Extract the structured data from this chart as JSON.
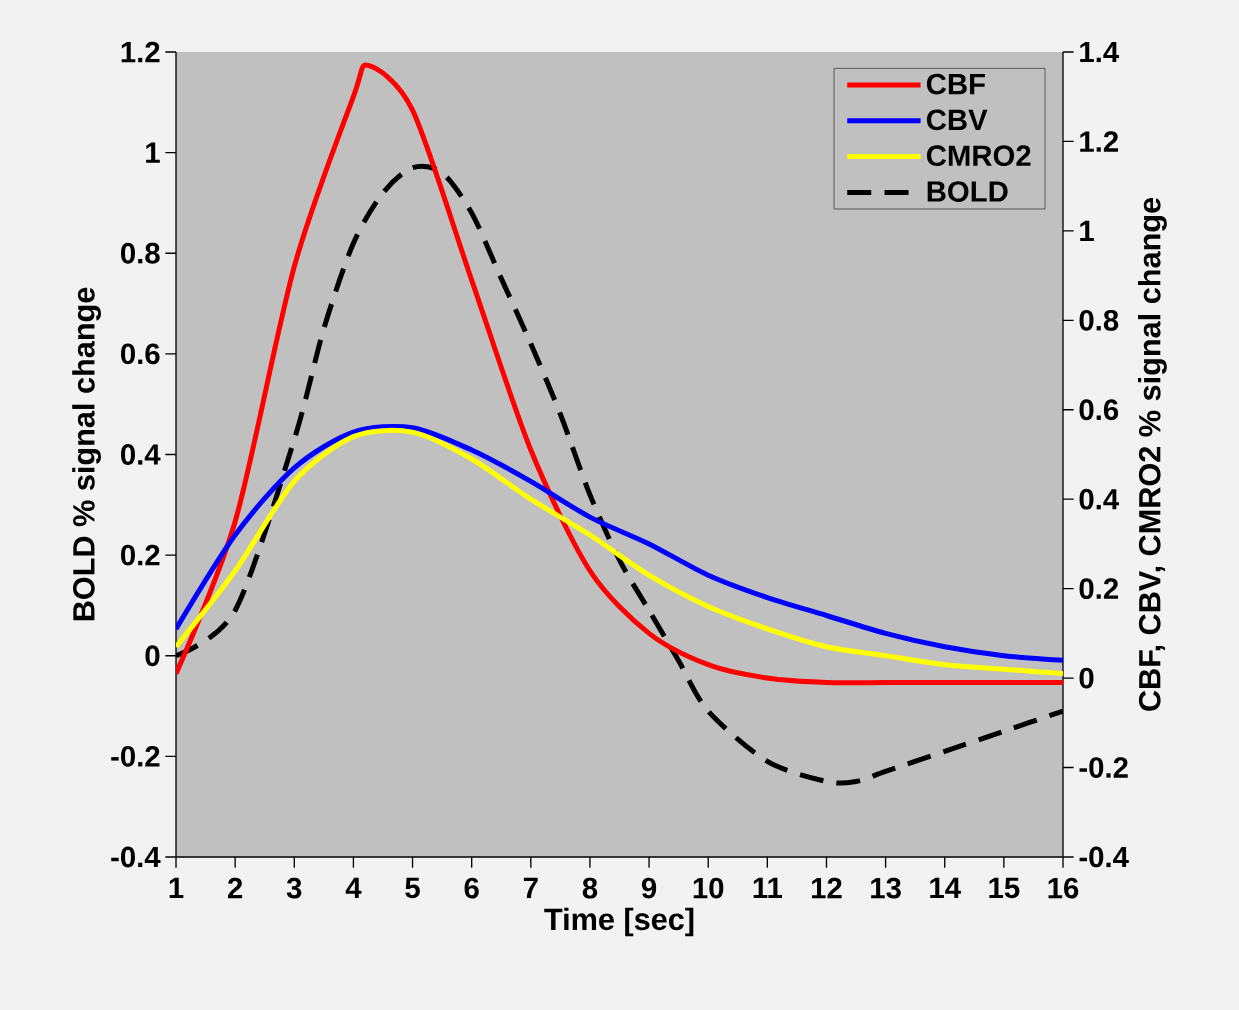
{
  "chart_data": {
    "type": "line",
    "xlabel": "Time [sec]",
    "ylabel": "BOLD % signal change",
    "y2label": "CBF, CBV, CMRO2 % signal change",
    "xlim": [
      1,
      16
    ],
    "xticks": [
      1,
      2,
      3,
      4,
      5,
      6,
      7,
      8,
      9,
      10,
      11,
      12,
      13,
      14,
      15,
      16
    ],
    "ylim": [
      -0.4,
      1.2
    ],
    "yticks": [
      -0.4,
      -0.2,
      0,
      0.2,
      0.4,
      0.6,
      0.8,
      1,
      1.2
    ],
    "y2lim": [
      -0.4,
      1.4
    ],
    "y2ticks": [
      -0.4,
      -0.2,
      0,
      0.2,
      0.4,
      0.6,
      0.8,
      1,
      1.2,
      1.4
    ],
    "grid": false,
    "legend": "top right",
    "marker": "none",
    "series": [
      {
        "name": "CBF",
        "color": "#ff0000",
        "axis": "y2",
        "line_style": "solid",
        "x": [
          1,
          2,
          3,
          4,
          4.25,
          5,
          6,
          7,
          8,
          9,
          10,
          11,
          12,
          13,
          14,
          15,
          16
        ],
        "values": [
          0.01,
          0.35,
          0.92,
          1.3,
          1.37,
          1.27,
          0.89,
          0.51,
          0.24,
          0.1,
          0.03,
          0.0,
          -0.01,
          -0.01,
          -0.01,
          -0.01,
          -0.01
        ]
      },
      {
        "name": "CBV",
        "color": "#0000ff",
        "axis": "y2",
        "line_style": "solid",
        "x": [
          1,
          2,
          3,
          4,
          5,
          6,
          7,
          8,
          9,
          10,
          11,
          12,
          13,
          14,
          15,
          16
        ],
        "values": [
          0.11,
          0.32,
          0.47,
          0.55,
          0.56,
          0.51,
          0.44,
          0.36,
          0.3,
          0.23,
          0.18,
          0.14,
          0.1,
          0.07,
          0.05,
          0.04
        ]
      },
      {
        "name": "CMRO2",
        "color": "#ffff00",
        "axis": "y2",
        "line_style": "solid",
        "x": [
          1,
          2,
          3,
          4,
          5,
          6,
          7,
          8,
          9,
          10,
          11,
          12,
          13,
          14,
          15,
          16
        ],
        "values": [
          0.07,
          0.24,
          0.44,
          0.54,
          0.55,
          0.49,
          0.4,
          0.32,
          0.23,
          0.16,
          0.11,
          0.07,
          0.05,
          0.03,
          0.02,
          0.01
        ]
      },
      {
        "name": "BOLD",
        "color": "#000000",
        "axis": "y",
        "line_style": "dashed",
        "x": [
          1,
          2,
          3,
          3.5,
          4,
          4.5,
          5,
          5.5,
          6,
          6.5,
          7,
          7.5,
          8,
          8.5,
          9,
          9.5,
          10,
          11,
          12,
          12.5,
          13,
          14,
          15,
          16
        ],
        "values": [
          0.0,
          0.09,
          0.43,
          0.65,
          0.82,
          0.92,
          0.97,
          0.96,
          0.88,
          0.75,
          0.62,
          0.48,
          0.32,
          0.19,
          0.09,
          -0.01,
          -0.11,
          -0.21,
          -0.25,
          -0.25,
          -0.23,
          -0.19,
          -0.15,
          -0.11
        ]
      }
    ]
  }
}
